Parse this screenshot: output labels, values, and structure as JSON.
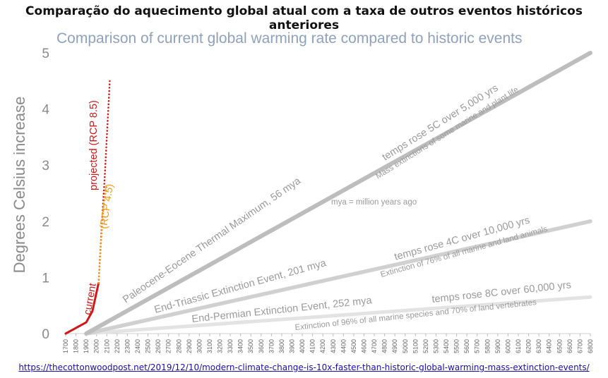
{
  "page": {
    "title": "Comparação do aquecimento global atual com a taxa de outros eventos históricos anteriores",
    "source_url": "https://thecottonwoodpost.net/2019/12/10/modern-climate-change-is-10x-faster-than-historic-global-warming-mass-extinction-events/"
  },
  "chart_data": {
    "type": "line",
    "title": "Comparison of current global warming rate compared to historic events",
    "ylabel": "Degrees Celsius increase",
    "xlabel": "",
    "ylim": [
      0,
      5
    ],
    "xlim": [
      1700,
      6800
    ],
    "yticks": [
      0,
      1,
      2,
      3,
      4,
      5
    ],
    "xticks": [
      1700,
      1800,
      1900,
      2000,
      2100,
      2200,
      2300,
      2400,
      2500,
      2600,
      2700,
      2800,
      2900,
      3000,
      3100,
      3200,
      3300,
      3400,
      3500,
      3600,
      3700,
      3800,
      3900,
      4000,
      4100,
      4200,
      4300,
      4400,
      4500,
      4600,
      4700,
      4800,
      4900,
      5000,
      5100,
      5200,
      5300,
      5400,
      5500,
      5600,
      5700,
      5800,
      5900,
      6000,
      6100,
      6200,
      6300,
      6400,
      6500,
      6600,
      6700,
      6800
    ],
    "grid": false,
    "series": [
      {
        "name": "current",
        "style": "solid",
        "color": "#d01818",
        "x": [
          1700,
          1900,
          1960,
          2020
        ],
        "y": [
          0,
          0.2,
          0.4,
          0.9
        ]
      },
      {
        "name": "projected (RCP 8.5)",
        "style": "dotted",
        "color": "#d01818",
        "x": [
          2020,
          2050,
          2080,
          2100,
          2130
        ],
        "y": [
          0.9,
          1.9,
          2.8,
          3.5,
          4.55
        ]
      },
      {
        "name": "(RCP 4.5)",
        "style": "dotted",
        "color": "#f29a1a",
        "x": [
          2020,
          2050,
          2070,
          2100
        ],
        "y": [
          0.9,
          1.8,
          2.3,
          2.65
        ]
      },
      {
        "name": "Paleocene-Eocene Thermal Maximum, 56 mya",
        "style": "solid",
        "color": "#bdbdbd",
        "x": [
          1900,
          6800
        ],
        "y": [
          0,
          5
        ]
      },
      {
        "name": "End-Triassic Extinction Event, 201 mya",
        "style": "solid",
        "color": "#d0d0d0",
        "x": [
          1900,
          6800
        ],
        "y": [
          0,
          2.0
        ]
      },
      {
        "name": "End-Permian Extinction Event, 252 mya",
        "style": "solid",
        "color": "#e3e3e3",
        "x": [
          1900,
          6800
        ],
        "y": [
          0,
          0.65
        ]
      }
    ],
    "annotations": {
      "current": "current",
      "rcp85": "projected (RCP 8.5)",
      "rcp45": "(RCP 4.5)",
      "petm_name": "Paleocene-Eocene Thermal Maximum, 56 mya",
      "petm_rate": "temps rose 5C over 5,000 yrs",
      "petm_effect": "Mass extinctions of some marine and plant life",
      "mya_note": "mya = million years ago",
      "triassic_name": "End-Triassic Extinction Event, 201 mya",
      "triassic_rate": "temps rose 4C over 10,000 yrs",
      "triassic_effect": "Extinction of 76% of all marine and land animals",
      "permian_name": "End-Permian Extinction Event, 252 mya",
      "permian_rate": "temps rose 8C over 60,000 yrs",
      "permian_effect": "Extinction of 96% of all marine species and 70% of land vertebrates"
    }
  }
}
